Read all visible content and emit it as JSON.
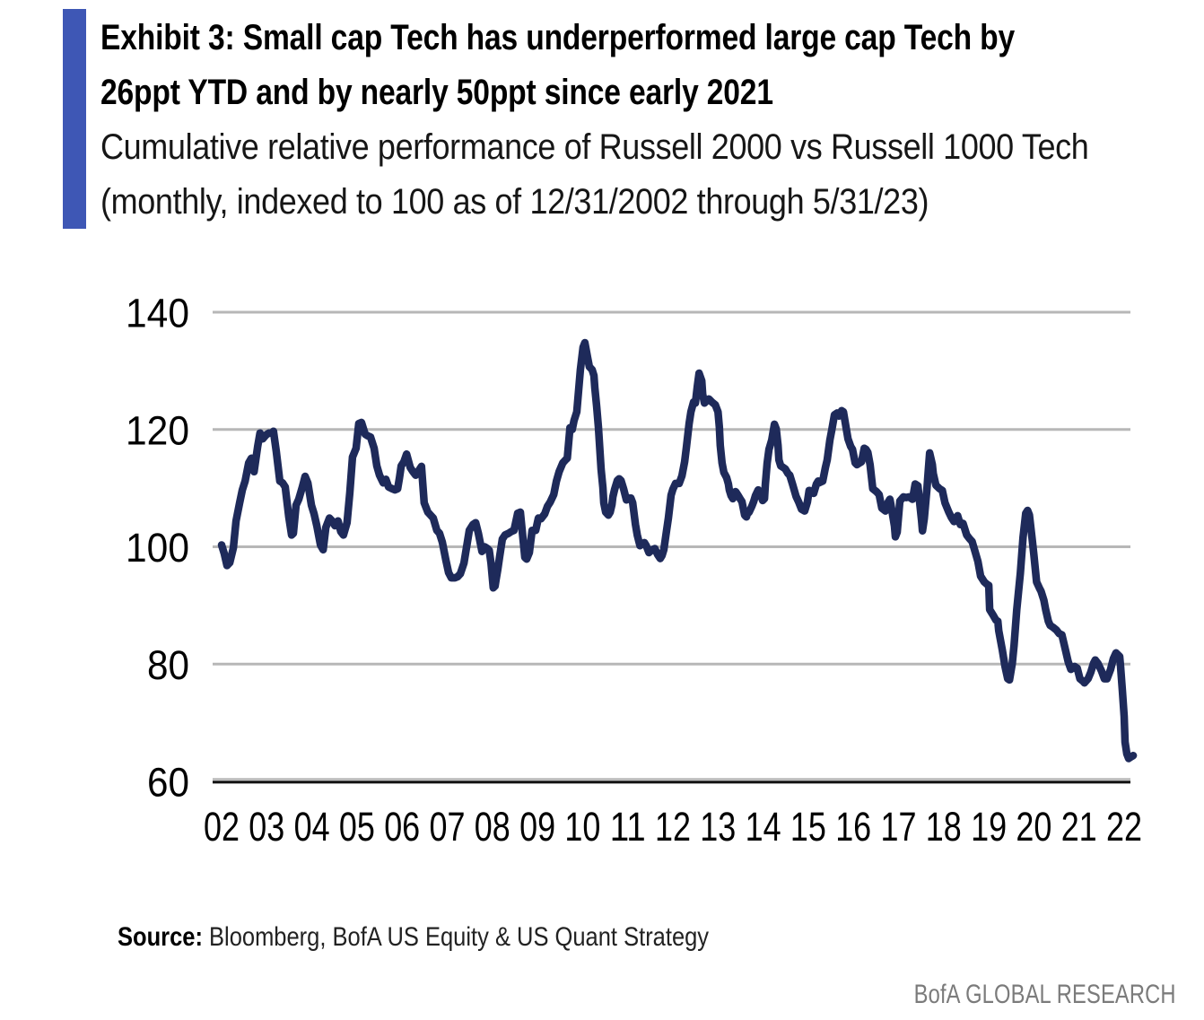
{
  "header": {
    "accent_bar_color": "#3e57b5",
    "title_line1": "Exhibit 3: Small cap Tech has underperformed large cap Tech by",
    "title_line2": "26ppt YTD and by nearly 50ppt since early 2021",
    "subtitle_line1": "Cumulative relative performance of Russell 2000 vs Russell 1000 Tech",
    "subtitle_line2": "(monthly, indexed to 100 as of 12/31/2002 through 5/31/23)"
  },
  "source": {
    "label": "Source:",
    "text": " Bloomberg, BofA US Equity & US Quant Strategy"
  },
  "footer": {
    "text": "BofA GLOBAL RESEARCH"
  },
  "chart_data": {
    "type": "line",
    "title": "Cumulative relative performance of Russell 2000 vs Russell 1000 Tech",
    "series_name": "Russell 2000 vs Russell 1000 Tech (indexed to 100 at 12/31/2002)",
    "x_unit": "years since 12/31/2002 (tick i = year-end 2002+i)",
    "ylim": [
      60,
      140
    ],
    "y_ticks": [
      140,
      120,
      100,
      80,
      60
    ],
    "x_tick_labels": [
      "02",
      "03",
      "04",
      "05",
      "06",
      "07",
      "08",
      "09",
      "10",
      "11",
      "12",
      "13",
      "14",
      "15",
      "16",
      "17",
      "18",
      "19",
      "20",
      "21",
      "22"
    ],
    "grid": true,
    "legend": "none",
    "colors": {
      "line": "#1e2a5a",
      "gridline": "#b7b7b7",
      "axis_gray": "#aaaaaa",
      "axis_black": "#111111",
      "tick_text": "#000000"
    },
    "points": [
      [
        0.0,
        100.3
      ],
      [
        0.06,
        98.8
      ],
      [
        0.12,
        96.8
      ],
      [
        0.18,
        97.3
      ],
      [
        0.26,
        99.8
      ],
      [
        0.32,
        104.4
      ],
      [
        0.4,
        107.5
      ],
      [
        0.46,
        109.7
      ],
      [
        0.52,
        111.2
      ],
      [
        0.6,
        114.3
      ],
      [
        0.66,
        115.1
      ],
      [
        0.72,
        112.8
      ],
      [
        0.8,
        117.1
      ],
      [
        0.85,
        119.4
      ],
      [
        0.91,
        118.4
      ],
      [
        0.99,
        119.1
      ],
      [
        1.05,
        119.4
      ],
      [
        1.11,
        119.4
      ],
      [
        1.15,
        119.7
      ],
      [
        1.21,
        116.3
      ],
      [
        1.29,
        111.2
      ],
      [
        1.35,
        110.9
      ],
      [
        1.41,
        110.2
      ],
      [
        1.49,
        105.1
      ],
      [
        1.55,
        102.0
      ],
      [
        1.59,
        102.3
      ],
      [
        1.65,
        107.1
      ],
      [
        1.71,
        108.1
      ],
      [
        1.79,
        110.2
      ],
      [
        1.85,
        112.0
      ],
      [
        1.91,
        110.9
      ],
      [
        1.99,
        107.1
      ],
      [
        2.05,
        105.6
      ],
      [
        2.11,
        103.6
      ],
      [
        2.19,
        100.3
      ],
      [
        2.25,
        99.5
      ],
      [
        2.31,
        103.3
      ],
      [
        2.39,
        104.9
      ],
      [
        2.45,
        104.4
      ],
      [
        2.51,
        103.6
      ],
      [
        2.58,
        104.4
      ],
      [
        2.64,
        102.6
      ],
      [
        2.7,
        102.0
      ],
      [
        2.78,
        104.1
      ],
      [
        2.84,
        109.2
      ],
      [
        2.9,
        115.3
      ],
      [
        2.98,
        116.8
      ],
      [
        3.04,
        121.0
      ],
      [
        3.1,
        121.2
      ],
      [
        3.18,
        119.2
      ],
      [
        3.24,
        118.9
      ],
      [
        3.3,
        118.7
      ],
      [
        3.38,
        116.8
      ],
      [
        3.44,
        113.8
      ],
      [
        3.5,
        112.2
      ],
      [
        3.58,
        110.9
      ],
      [
        3.64,
        111.5
      ],
      [
        3.7,
        110.2
      ],
      [
        3.78,
        109.9
      ],
      [
        3.84,
        109.7
      ],
      [
        3.9,
        109.9
      ],
      [
        3.94,
        111.7
      ],
      [
        3.98,
        113.8
      ],
      [
        4.04,
        114.5
      ],
      [
        4.1,
        115.8
      ],
      [
        4.18,
        113.5
      ],
      [
        4.24,
        112.8
      ],
      [
        4.3,
        112.2
      ],
      [
        4.37,
        113.0
      ],
      [
        4.43,
        113.7
      ],
      [
        4.49,
        107.5
      ],
      [
        4.57,
        105.9
      ],
      [
        4.63,
        105.4
      ],
      [
        4.69,
        104.9
      ],
      [
        4.77,
        102.8
      ],
      [
        4.83,
        102.3
      ],
      [
        4.89,
        100.8
      ],
      [
        4.97,
        97.7
      ],
      [
        5.03,
        95.6
      ],
      [
        5.09,
        94.7
      ],
      [
        5.17,
        94.7
      ],
      [
        5.23,
        94.9
      ],
      [
        5.29,
        95.4
      ],
      [
        5.37,
        97.2
      ],
      [
        5.43,
        100.0
      ],
      [
        5.49,
        102.8
      ],
      [
        5.57,
        103.8
      ],
      [
        5.63,
        104.1
      ],
      [
        5.69,
        102.3
      ],
      [
        5.77,
        99.2
      ],
      [
        5.83,
        100.0
      ],
      [
        5.89,
        99.7
      ],
      [
        5.93,
        99.4
      ],
      [
        5.97,
        97.2
      ],
      [
        6.02,
        93.0
      ],
      [
        6.06,
        93.3
      ],
      [
        6.08,
        94.3
      ],
      [
        6.12,
        96.1
      ],
      [
        6.16,
        98.2
      ],
      [
        6.22,
        101.3
      ],
      [
        6.28,
        102.0
      ],
      [
        6.36,
        102.3
      ],
      [
        6.42,
        102.6
      ],
      [
        6.48,
        102.8
      ],
      [
        6.56,
        105.7
      ],
      [
        6.62,
        105.9
      ],
      [
        6.66,
        102.8
      ],
      [
        6.72,
        98.2
      ],
      [
        6.76,
        97.9
      ],
      [
        6.82,
        99.0
      ],
      [
        6.88,
        102.8
      ],
      [
        6.96,
        102.8
      ],
      [
        7.02,
        104.9
      ],
      [
        7.08,
        104.8
      ],
      [
        7.16,
        105.6
      ],
      [
        7.22,
        106.9
      ],
      [
        7.28,
        107.6
      ],
      [
        7.36,
        108.9
      ],
      [
        7.42,
        111.2
      ],
      [
        7.48,
        112.8
      ],
      [
        7.56,
        114.3
      ],
      [
        7.62,
        114.8
      ],
      [
        7.66,
        115.1
      ],
      [
        7.72,
        120.3
      ],
      [
        7.77,
        120.0
      ],
      [
        7.81,
        121.5
      ],
      [
        7.87,
        123.0
      ],
      [
        7.91,
        126.6
      ],
      [
        7.95,
        130.2
      ],
      [
        8.01,
        134.0
      ],
      [
        8.05,
        134.8
      ],
      [
        8.11,
        132.3
      ],
      [
        8.15,
        130.7
      ],
      [
        8.21,
        130.2
      ],
      [
        8.25,
        129.2
      ],
      [
        8.27,
        127.1
      ],
      [
        8.31,
        124.0
      ],
      [
        8.35,
        120.4
      ],
      [
        8.41,
        113.2
      ],
      [
        8.45,
        110.1
      ],
      [
        8.47,
        107.5
      ],
      [
        8.51,
        105.9
      ],
      [
        8.57,
        105.4
      ],
      [
        8.61,
        105.9
      ],
      [
        8.65,
        107.2
      ],
      [
        8.67,
        108.5
      ],
      [
        8.71,
        109.8
      ],
      [
        8.77,
        111.3
      ],
      [
        8.81,
        111.6
      ],
      [
        8.85,
        111.3
      ],
      [
        8.91,
        109.8
      ],
      [
        8.97,
        108.0
      ],
      [
        9.01,
        108.3
      ],
      [
        9.07,
        108.3
      ],
      [
        9.11,
        107.5
      ],
      [
        9.17,
        103.8
      ],
      [
        9.21,
        102.0
      ],
      [
        9.27,
        100.2
      ],
      [
        9.31,
        100.4
      ],
      [
        9.37,
        100.7
      ],
      [
        9.41,
        100.2
      ],
      [
        9.47,
        99.0
      ],
      [
        9.54,
        99.5
      ],
      [
        9.6,
        99.7
      ],
      [
        9.66,
        98.7
      ],
      [
        9.72,
        98.0
      ],
      [
        9.76,
        98.5
      ],
      [
        9.8,
        99.5
      ],
      [
        9.86,
        102.8
      ],
      [
        9.9,
        104.9
      ],
      [
        9.96,
        108.8
      ],
      [
        10.0,
        109.8
      ],
      [
        10.06,
        110.8
      ],
      [
        10.14,
        110.8
      ],
      [
        10.2,
        112.1
      ],
      [
        10.26,
        114.5
      ],
      [
        10.3,
        117.0
      ],
      [
        10.36,
        121.0
      ],
      [
        10.4,
        123.0
      ],
      [
        10.46,
        124.7
      ],
      [
        10.5,
        124.5
      ],
      [
        10.54,
        127.3
      ],
      [
        10.58,
        129.6
      ],
      [
        10.64,
        128.3
      ],
      [
        10.66,
        126.0
      ],
      [
        10.7,
        124.5
      ],
      [
        10.76,
        125.0
      ],
      [
        10.8,
        125.2
      ],
      [
        10.86,
        124.7
      ],
      [
        10.94,
        124.2
      ],
      [
        11.0,
        123.0
      ],
      [
        11.03,
        120.4
      ],
      [
        11.05,
        117.3
      ],
      [
        11.09,
        114.3
      ],
      [
        11.13,
        112.7
      ],
      [
        11.19,
        111.8
      ],
      [
        11.23,
        110.7
      ],
      [
        11.25,
        109.7
      ],
      [
        11.29,
        108.7
      ],
      [
        11.33,
        108.2
      ],
      [
        11.35,
        109.2
      ],
      [
        11.39,
        109.4
      ],
      [
        11.45,
        108.7
      ],
      [
        11.49,
        108.2
      ],
      [
        11.53,
        107.7
      ],
      [
        11.59,
        105.4
      ],
      [
        11.63,
        105.1
      ],
      [
        11.65,
        105.6
      ],
      [
        11.69,
        105.9
      ],
      [
        11.75,
        106.9
      ],
      [
        11.79,
        107.7
      ],
      [
        11.83,
        108.7
      ],
      [
        11.89,
        109.7
      ],
      [
        11.93,
        109.2
      ],
      [
        11.99,
        107.9
      ],
      [
        12.03,
        108.2
      ],
      [
        12.05,
        110.7
      ],
      [
        12.09,
        114.3
      ],
      [
        12.13,
        116.6
      ],
      [
        12.19,
        118.2
      ],
      [
        12.25,
        120.9
      ],
      [
        12.29,
        120.1
      ],
      [
        12.33,
        117.3
      ],
      [
        12.35,
        114.8
      ],
      [
        12.39,
        113.8
      ],
      [
        12.43,
        113.6
      ],
      [
        12.49,
        113.3
      ],
      [
        12.55,
        112.5
      ],
      [
        12.59,
        112.2
      ],
      [
        12.65,
        110.7
      ],
      [
        12.73,
        108.6
      ],
      [
        12.79,
        107.6
      ],
      [
        12.85,
        106.4
      ],
      [
        12.92,
        106.1
      ],
      [
        12.98,
        107.6
      ],
      [
        13.02,
        109.6
      ],
      [
        13.08,
        109.4
      ],
      [
        13.12,
        109.1
      ],
      [
        13.18,
        110.7
      ],
      [
        13.22,
        111.2
      ],
      [
        13.24,
        110.9
      ],
      [
        13.32,
        111.2
      ],
      [
        13.38,
        113.5
      ],
      [
        13.42,
        114.8
      ],
      [
        13.48,
        118.2
      ],
      [
        13.52,
        119.9
      ],
      [
        13.58,
        122.5
      ],
      [
        13.64,
        122.8
      ],
      [
        13.68,
        122.3
      ],
      [
        13.74,
        123.2
      ],
      [
        13.78,
        123.0
      ],
      [
        13.84,
        120.2
      ],
      [
        13.88,
        118.4
      ],
      [
        13.94,
        117.1
      ],
      [
        13.98,
        116.6
      ],
      [
        14.04,
        114.3
      ],
      [
        14.08,
        114.0
      ],
      [
        14.14,
        114.3
      ],
      [
        14.18,
        114.5
      ],
      [
        14.24,
        116.8
      ],
      [
        14.28,
        116.6
      ],
      [
        14.32,
        116.1
      ],
      [
        14.37,
        114.0
      ],
      [
        14.43,
        109.9
      ],
      [
        14.51,
        109.4
      ],
      [
        14.57,
        108.9
      ],
      [
        14.63,
        106.6
      ],
      [
        14.71,
        106.1
      ],
      [
        14.77,
        107.6
      ],
      [
        14.81,
        108.1
      ],
      [
        14.83,
        107.3
      ],
      [
        14.91,
        103.5
      ],
      [
        14.93,
        101.7
      ],
      [
        14.97,
        102.5
      ],
      [
        15.03,
        107.8
      ],
      [
        15.11,
        108.5
      ],
      [
        15.17,
        108.4
      ],
      [
        15.23,
        108.5
      ],
      [
        15.31,
        108.1
      ],
      [
        15.37,
        110.7
      ],
      [
        15.43,
        110.4
      ],
      [
        15.51,
        104.5
      ],
      [
        15.53,
        102.7
      ],
      [
        15.57,
        104.8
      ],
      [
        15.63,
        109.9
      ],
      [
        15.66,
        113.0
      ],
      [
        15.69,
        116.0
      ],
      [
        15.75,
        114.0
      ],
      [
        15.77,
        112.5
      ],
      [
        15.83,
        110.5
      ],
      [
        15.91,
        109.9
      ],
      [
        15.97,
        109.6
      ],
      [
        16.03,
        107.5
      ],
      [
        16.11,
        106.0
      ],
      [
        16.17,
        105.0
      ],
      [
        16.23,
        104.3
      ],
      [
        16.31,
        105.3
      ],
      [
        16.37,
        103.8
      ],
      [
        16.43,
        104.0
      ],
      [
        16.51,
        102.0
      ],
      [
        16.57,
        101.4
      ],
      [
        16.63,
        100.9
      ],
      [
        16.7,
        99.1
      ],
      [
        16.76,
        97.5
      ],
      [
        16.82,
        95.0
      ],
      [
        16.9,
        94.0
      ],
      [
        16.96,
        93.6
      ],
      [
        17.0,
        93.4
      ],
      [
        17.02,
        89.3
      ],
      [
        17.1,
        88.3
      ],
      [
        17.16,
        87.5
      ],
      [
        17.2,
        87.3
      ],
      [
        17.22,
        85.7
      ],
      [
        17.3,
        82.4
      ],
      [
        17.36,
        79.6
      ],
      [
        17.42,
        77.5
      ],
      [
        17.46,
        77.3
      ],
      [
        17.52,
        80.1
      ],
      [
        17.56,
        83.2
      ],
      [
        17.62,
        89.3
      ],
      [
        17.66,
        92.4
      ],
      [
        17.7,
        95.5
      ],
      [
        17.76,
        101.6
      ],
      [
        17.82,
        105.7
      ],
      [
        17.86,
        106.2
      ],
      [
        17.9,
        105.4
      ],
      [
        17.96,
        101.4
      ],
      [
        18.0,
        98.6
      ],
      [
        18.06,
        94.0
      ],
      [
        18.12,
        93.0
      ],
      [
        18.16,
        92.4
      ],
      [
        18.22,
        90.9
      ],
      [
        18.26,
        89.3
      ],
      [
        18.32,
        87.3
      ],
      [
        18.36,
        86.6
      ],
      [
        18.42,
        86.3
      ],
      [
        18.5,
        85.8
      ],
      [
        18.56,
        85.2
      ],
      [
        18.62,
        85.0
      ],
      [
        18.7,
        82.4
      ],
      [
        18.76,
        80.4
      ],
      [
        18.82,
        79.1
      ],
      [
        18.9,
        79.6
      ],
      [
        18.96,
        79.3
      ],
      [
        19.02,
        77.5
      ],
      [
        19.1,
        77.0
      ],
      [
        19.12,
        76.8
      ],
      [
        19.2,
        77.5
      ],
      [
        19.26,
        78.6
      ],
      [
        19.32,
        80.1
      ],
      [
        19.36,
        80.7
      ],
      [
        19.42,
        80.1
      ],
      [
        19.5,
        78.8
      ],
      [
        19.56,
        77.5
      ],
      [
        19.62,
        77.5
      ],
      [
        19.7,
        79.1
      ],
      [
        19.76,
        80.9
      ],
      [
        19.82,
        81.9
      ],
      [
        19.9,
        81.3
      ],
      [
        19.92,
        79.6
      ],
      [
        19.96,
        75.5
      ],
      [
        20.0,
        71.1
      ],
      [
        20.02,
        66.7
      ],
      [
        20.06,
        64.7
      ],
      [
        20.1,
        63.9
      ],
      [
        20.16,
        64.2
      ],
      [
        20.2,
        64.4
      ]
    ]
  }
}
